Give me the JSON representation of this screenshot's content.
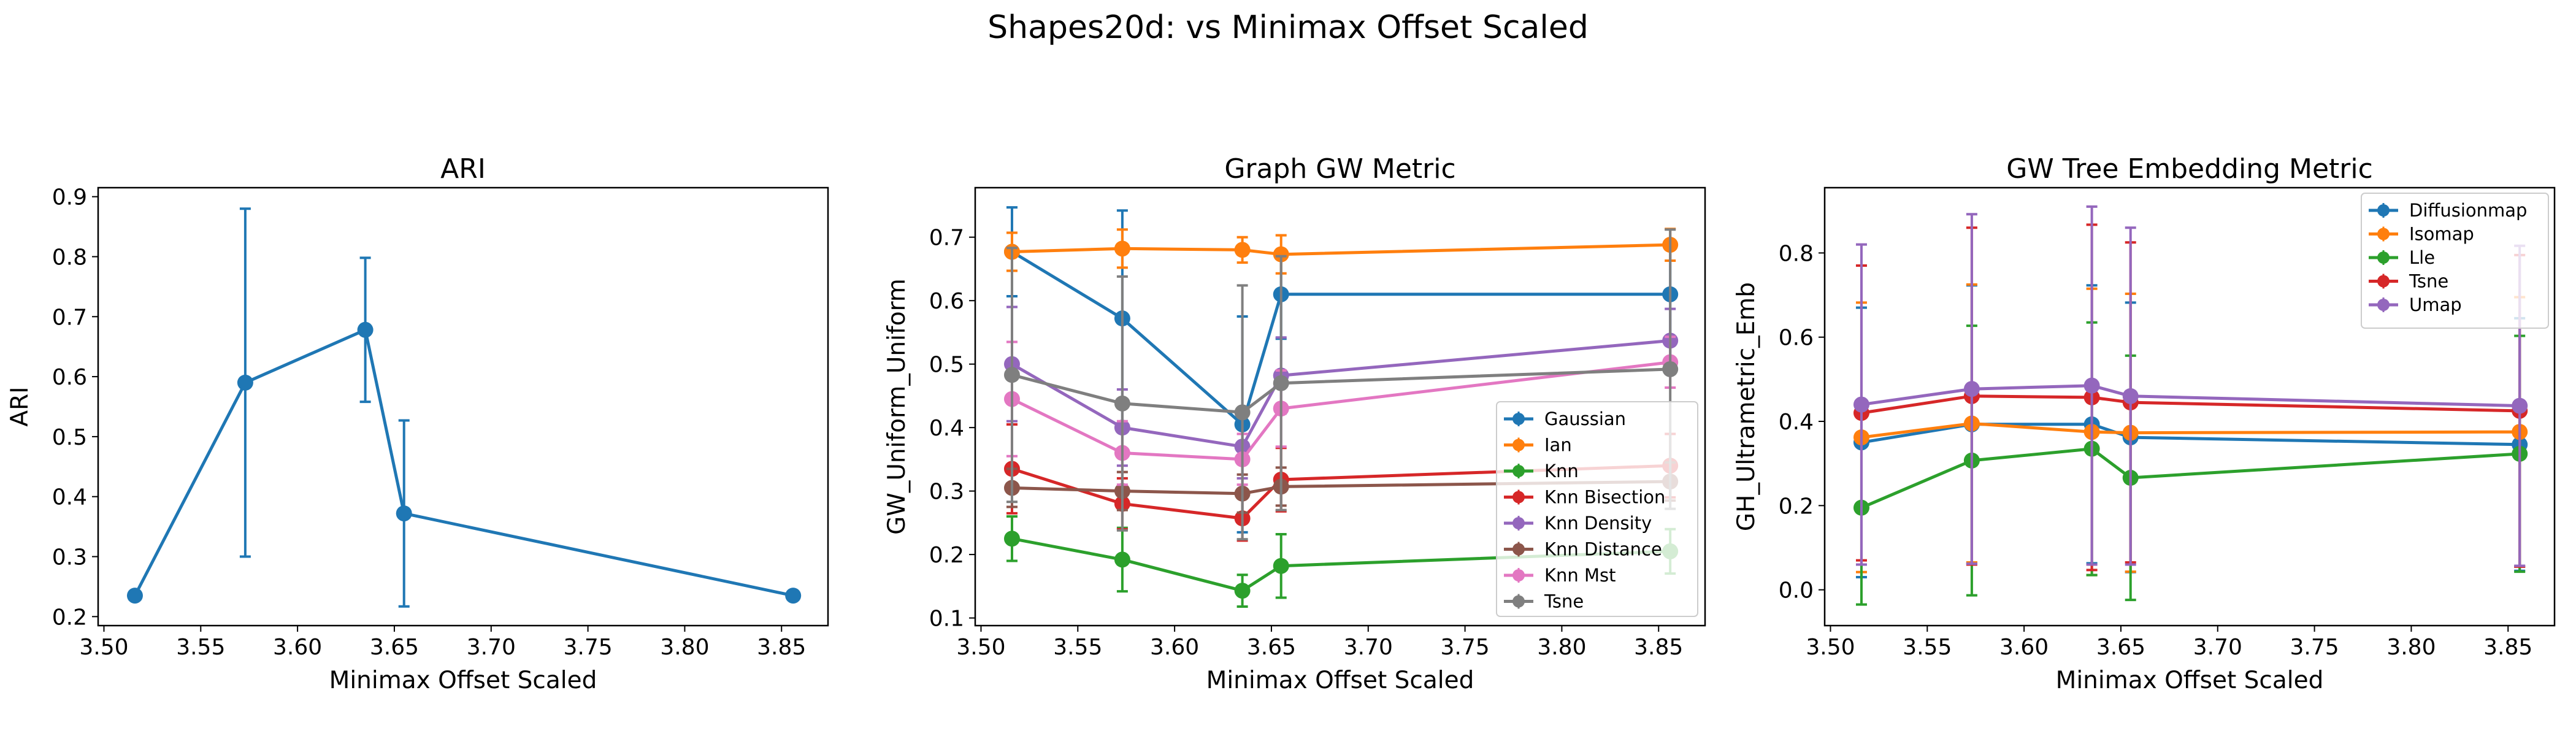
{
  "suptitle": "Shapes20d: vs Minimax Offset Scaled",
  "chart_data": [
    {
      "type": "line",
      "title": "ARI",
      "xlabel": "Minimax Offset Scaled",
      "ylabel": "ARI",
      "xlim": [
        3.497,
        3.874
      ],
      "ylim": [
        0.185,
        0.915
      ],
      "xticks": [
        3.5,
        3.55,
        3.6,
        3.65,
        3.7,
        3.75,
        3.8,
        3.85
      ],
      "xtick_labels": [
        "3.50",
        "3.55",
        "3.60",
        "3.65",
        "3.70",
        "3.75",
        "3.80",
        "3.85"
      ],
      "yticks": [
        0.2,
        0.3,
        0.4,
        0.5,
        0.6,
        0.7,
        0.8,
        0.9
      ],
      "ytick_labels": [
        "0.2",
        "0.3",
        "0.4",
        "0.5",
        "0.6",
        "0.7",
        "0.8",
        "0.9"
      ],
      "legend": null,
      "series": [
        {
          "color": "#1f77b4",
          "x": [
            3.516,
            3.573,
            3.635,
            3.655,
            3.856
          ],
          "y": [
            0.235,
            0.59,
            0.678,
            0.372,
            0.235
          ],
          "err": [
            0,
            0.29,
            0.12,
            0.155,
            0
          ]
        }
      ]
    },
    {
      "type": "line",
      "title": "Graph GW Metric",
      "xlabel": "Minimax Offset Scaled",
      "ylabel": "GW_Uniform_Uniform",
      "xlim": [
        3.497,
        3.874
      ],
      "ylim": [
        0.088,
        0.778
      ],
      "xticks": [
        3.5,
        3.55,
        3.6,
        3.65,
        3.7,
        3.75,
        3.8,
        3.85
      ],
      "xtick_labels": [
        "3.50",
        "3.55",
        "3.60",
        "3.65",
        "3.70",
        "3.75",
        "3.80",
        "3.85"
      ],
      "yticks": [
        0.1,
        0.2,
        0.3,
        0.4,
        0.5,
        0.6,
        0.7
      ],
      "ytick_labels": [
        "0.1",
        "0.2",
        "0.3",
        "0.4",
        "0.5",
        "0.6",
        "0.7"
      ],
      "legend": "lower-right",
      "series": [
        {
          "name": "Gaussian",
          "color": "#1f77b4",
          "x": [
            3.516,
            3.573,
            3.635,
            3.655,
            3.856
          ],
          "y": [
            0.677,
            0.572,
            0.405,
            0.61,
            0.61
          ],
          "err": [
            0.07,
            0.17,
            0.17,
            0.07,
            0.08
          ]
        },
        {
          "name": "Ian",
          "color": "#ff7f0e",
          "x": [
            3.516,
            3.573,
            3.635,
            3.655,
            3.856
          ],
          "y": [
            0.677,
            0.682,
            0.68,
            0.673,
            0.688
          ],
          "err": [
            0.03,
            0.03,
            0.02,
            0.03,
            0.025
          ]
        },
        {
          "name": "Knn",
          "color": "#2ca02c",
          "x": [
            3.516,
            3.573,
            3.635,
            3.655,
            3.856
          ],
          "y": [
            0.225,
            0.192,
            0.143,
            0.182,
            0.205
          ],
          "err": [
            0.035,
            0.05,
            0.025,
            0.05,
            0.035
          ]
        },
        {
          "name": "Knn Bisection",
          "color": "#d62728",
          "x": [
            3.516,
            3.573,
            3.635,
            3.655,
            3.856
          ],
          "y": [
            0.335,
            0.28,
            0.257,
            0.318,
            0.34
          ],
          "err": [
            0.07,
            0.04,
            0.035,
            0.05,
            0.05
          ]
        },
        {
          "name": "Knn Density",
          "color": "#9467bd",
          "x": [
            3.516,
            3.573,
            3.635,
            3.655,
            3.856
          ],
          "y": [
            0.5,
            0.4,
            0.37,
            0.482,
            0.537
          ],
          "err": [
            0.09,
            0.06,
            0.05,
            0.06,
            0.05
          ]
        },
        {
          "name": "Knn Distance",
          "color": "#8c564b",
          "x": [
            3.516,
            3.573,
            3.635,
            3.655,
            3.856
          ],
          "y": [
            0.305,
            0.3,
            0.296,
            0.307,
            0.315
          ],
          "err": [
            0.03,
            0.03,
            0.03,
            0.03,
            0.03
          ]
        },
        {
          "name": "Knn Mst",
          "color": "#e377c2",
          "x": [
            3.516,
            3.573,
            3.635,
            3.655,
            3.856
          ],
          "y": [
            0.445,
            0.36,
            0.35,
            0.43,
            0.503
          ],
          "err": [
            0.09,
            0.05,
            0.04,
            0.06,
            0.04
          ]
        },
        {
          "name": "Tsne",
          "color": "#7f7f7f",
          "x": [
            3.516,
            3.573,
            3.635,
            3.655,
            3.856
          ],
          "y": [
            0.483,
            0.438,
            0.424,
            0.47,
            0.492
          ],
          "err": [
            0.2,
            0.2,
            0.2,
            0.2,
            0.22
          ]
        }
      ]
    },
    {
      "type": "line",
      "title": "GW Tree Embedding Metric",
      "xlabel": "Minimax Offset Scaled",
      "ylabel": "GH_Ultrametric_Emb",
      "xlim": [
        3.497,
        3.874
      ],
      "ylim": [
        -0.085,
        0.955
      ],
      "xticks": [
        3.5,
        3.55,
        3.6,
        3.65,
        3.7,
        3.75,
        3.8,
        3.85
      ],
      "xtick_labels": [
        "3.50",
        "3.55",
        "3.60",
        "3.65",
        "3.70",
        "3.75",
        "3.80",
        "3.85"
      ],
      "yticks": [
        0.0,
        0.2,
        0.4,
        0.6,
        0.8
      ],
      "ytick_labels": [
        "0.0",
        "0.2",
        "0.4",
        "0.6",
        "0.8"
      ],
      "legend": "upper-right",
      "series": [
        {
          "name": "Diffusionmap",
          "color": "#1f77b4",
          "x": [
            3.516,
            3.573,
            3.635,
            3.655,
            3.856
          ],
          "y": [
            0.35,
            0.393,
            0.393,
            0.362,
            0.345
          ],
          "err": [
            0.32,
            0.33,
            0.33,
            0.32,
            0.3
          ]
        },
        {
          "name": "Isomap",
          "color": "#ff7f0e",
          "x": [
            3.516,
            3.573,
            3.635,
            3.655,
            3.856
          ],
          "y": [
            0.362,
            0.395,
            0.375,
            0.373,
            0.375
          ],
          "err": [
            0.32,
            0.33,
            0.34,
            0.33,
            0.32
          ]
        },
        {
          "name": "Lle",
          "color": "#2ca02c",
          "x": [
            3.516,
            3.573,
            3.635,
            3.655,
            3.856
          ],
          "y": [
            0.195,
            0.307,
            0.335,
            0.266,
            0.323
          ],
          "err": [
            0.23,
            0.32,
            0.3,
            0.29,
            0.28
          ]
        },
        {
          "name": "Tsne",
          "color": "#d62728",
          "x": [
            3.516,
            3.573,
            3.635,
            3.655,
            3.856
          ],
          "y": [
            0.42,
            0.46,
            0.457,
            0.445,
            0.425
          ],
          "err": [
            0.35,
            0.4,
            0.41,
            0.38,
            0.37
          ]
        },
        {
          "name": "Umap",
          "color": "#9467bd",
          "x": [
            3.516,
            3.573,
            3.635,
            3.655,
            3.856
          ],
          "y": [
            0.44,
            0.477,
            0.485,
            0.46,
            0.437
          ],
          "err": [
            0.38,
            0.415,
            0.425,
            0.4,
            0.38
          ]
        }
      ]
    }
  ]
}
